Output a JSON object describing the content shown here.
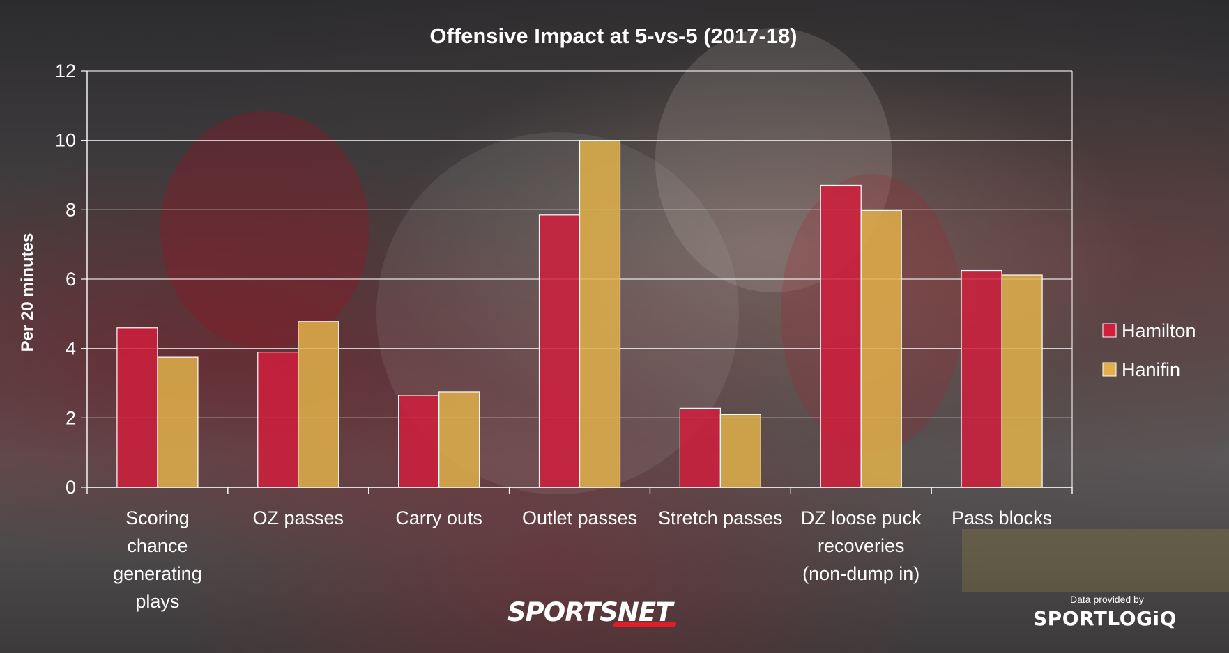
{
  "chart_data": {
    "type": "bar",
    "title": "Offensive Impact at 5-vs-5 (2017-18)",
    "ylabel": "Per 20 minutes",
    "xlabel": "",
    "ylim": [
      0,
      12
    ],
    "yticks": [
      0,
      2,
      4,
      6,
      8,
      10,
      12
    ],
    "grid": true,
    "legend_position": "right",
    "categories": [
      [
        "Scoring",
        "chance",
        "generating",
        "plays"
      ],
      [
        "OZ passes"
      ],
      [
        "Carry outs"
      ],
      [
        "Outlet passes"
      ],
      [
        "Stretch passes"
      ],
      [
        "DZ loose puck",
        "recoveries",
        "(non-dump in)"
      ],
      [
        "Pass blocks"
      ]
    ],
    "series": [
      {
        "name": "Hamilton",
        "color": "#d01f3c",
        "values": [
          4.6,
          3.9,
          2.65,
          7.85,
          2.28,
          8.7,
          6.25
        ]
      },
      {
        "name": "Hanifin",
        "color": "#e0b04a",
        "values": [
          3.75,
          4.78,
          2.75,
          10.0,
          2.1,
          7.98,
          6.12
        ]
      }
    ]
  },
  "branding": {
    "publisher": "SPORTSNET",
    "credit_label": "Data provided by",
    "credit_logo": "SPORTLOGiQ"
  }
}
